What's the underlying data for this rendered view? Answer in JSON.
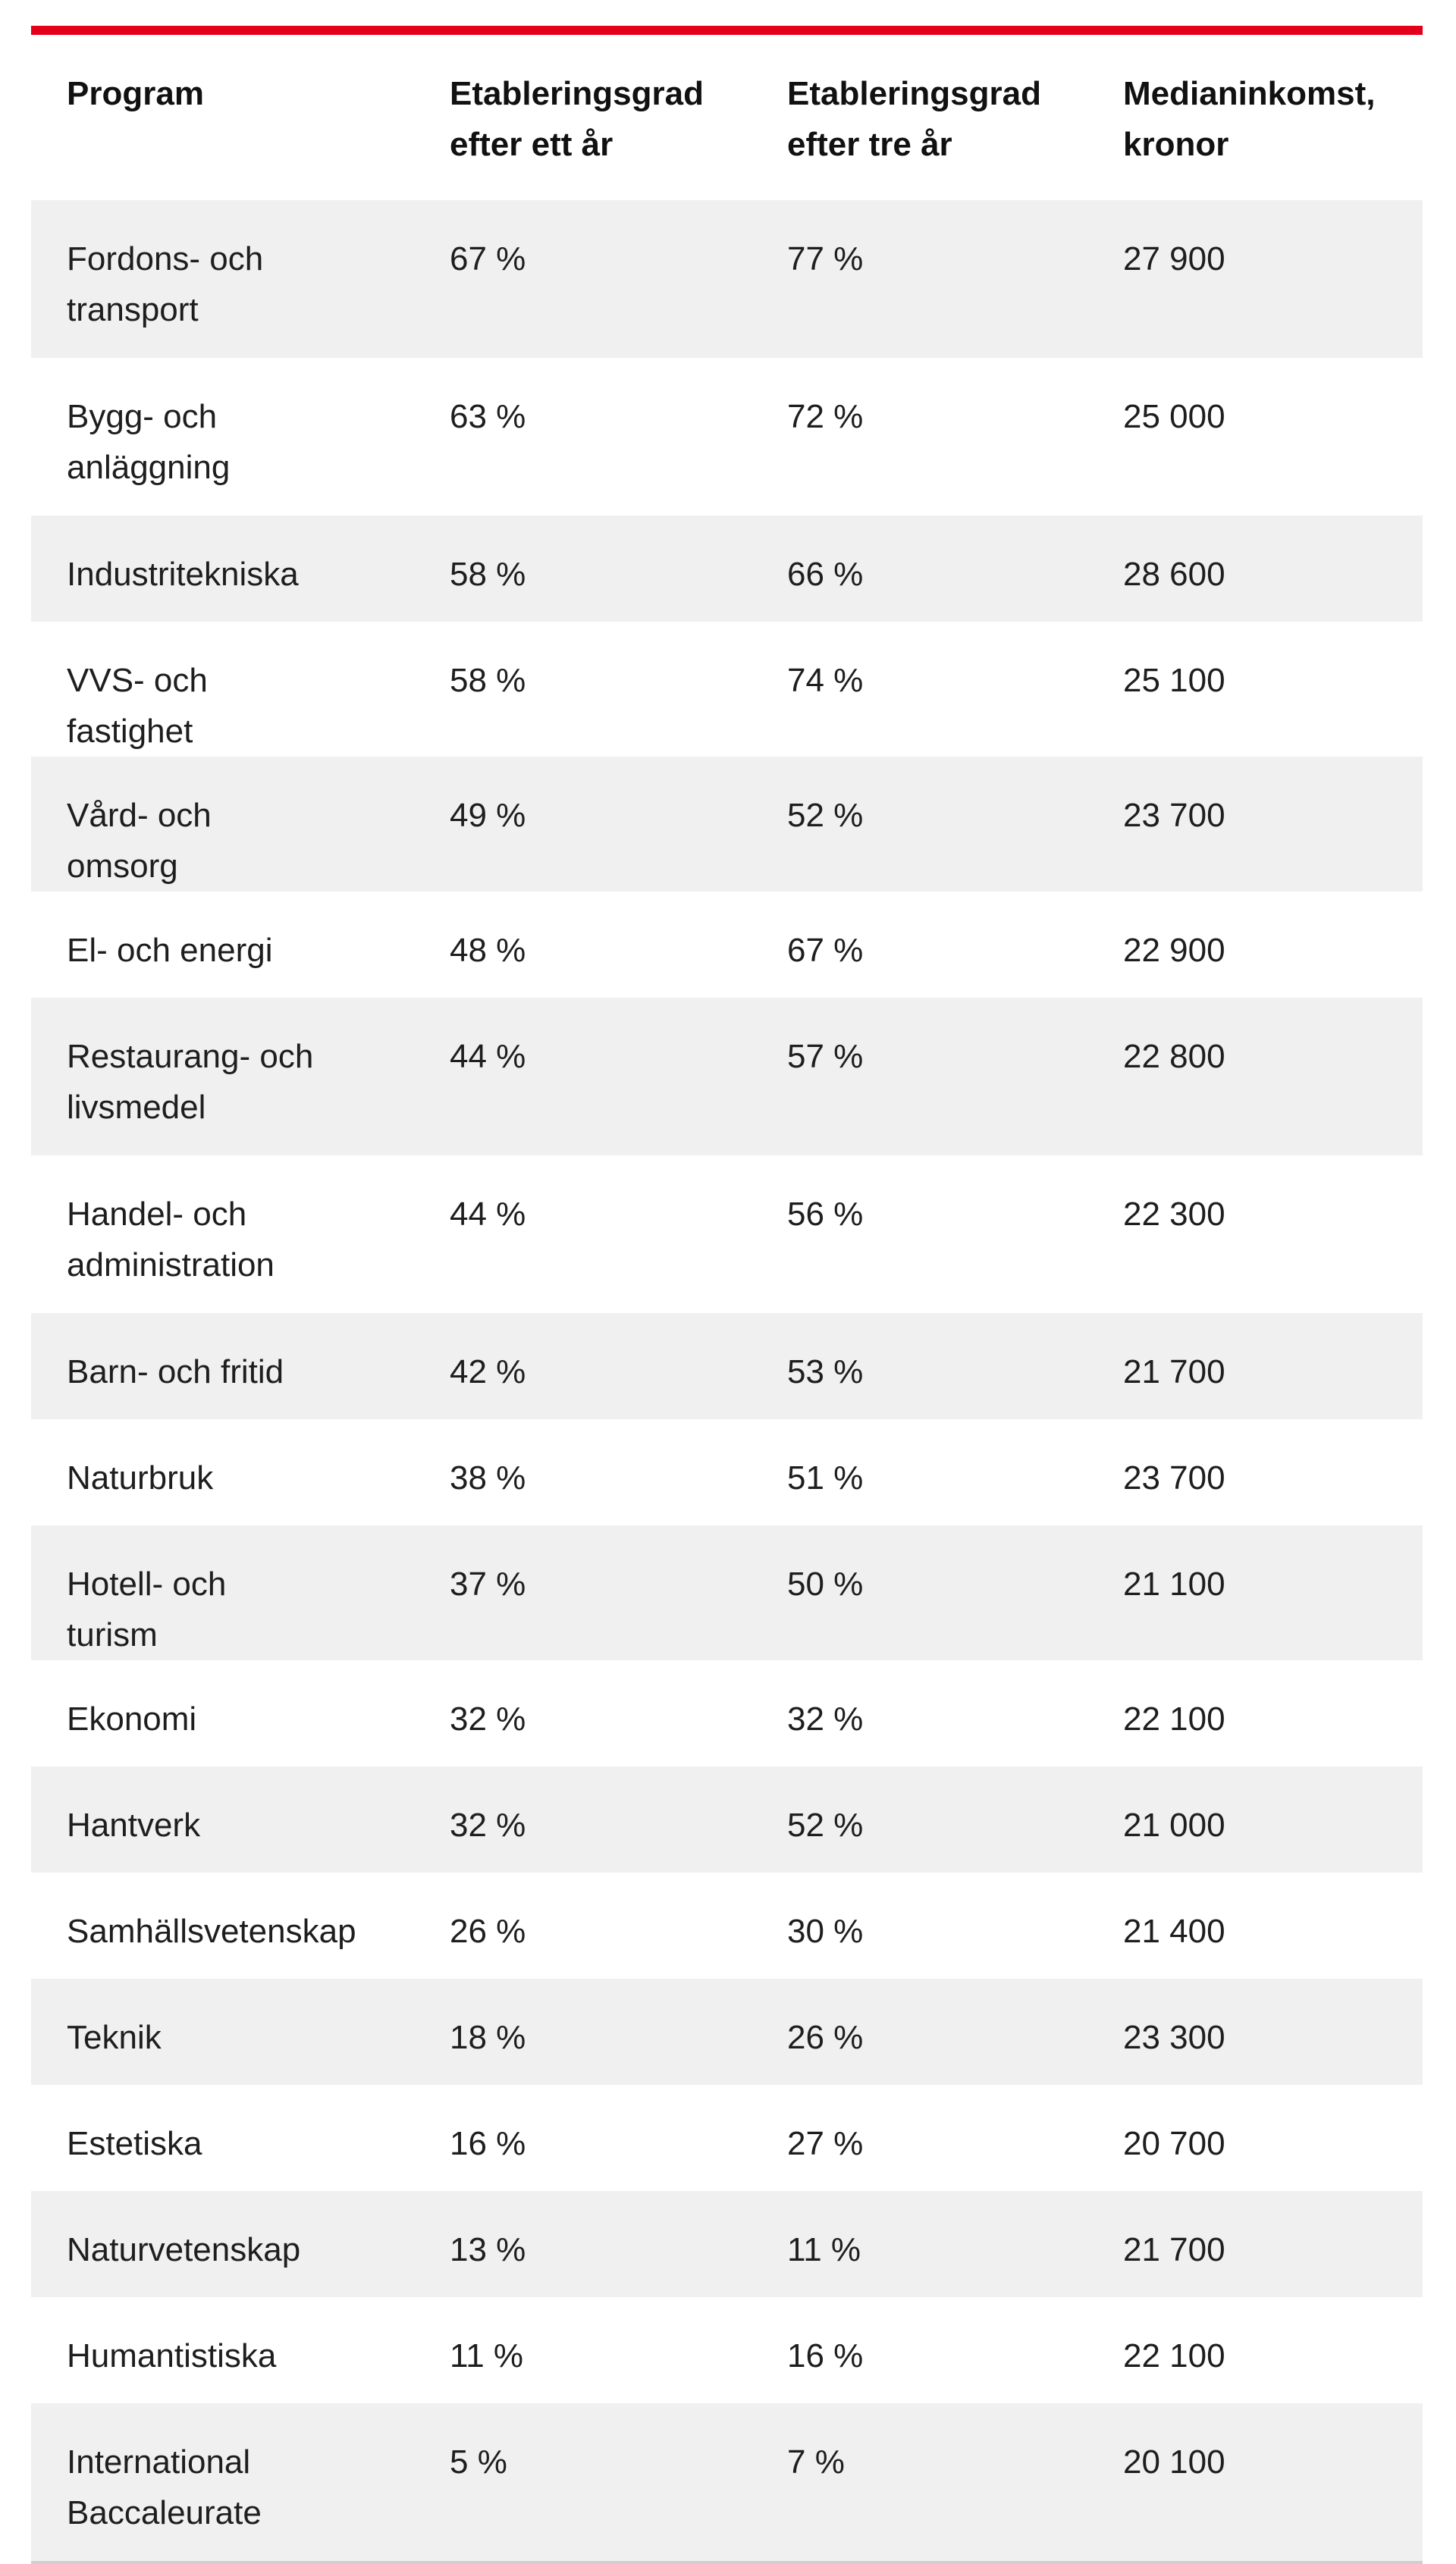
{
  "table": {
    "accent_color": "#e3001b",
    "headers": [
      "Program",
      "Etableringsgrad efter ett år",
      "Etableringsgrad efter tre år",
      "Medianinkomst, kronor"
    ],
    "rows": [
      [
        "Fordons- och transport",
        "67 %",
        "77 %",
        "27 900"
      ],
      [
        "Bygg- och anläggning",
        "63 %",
        "72 %",
        "25 000"
      ],
      [
        "Industritekniska",
        "58 %",
        "66 %",
        "28 600"
      ],
      [
        "VVS- och fastighet",
        "58 %",
        "74 %",
        "25 100"
      ],
      [
        "Vård- och omsorg",
        "49 %",
        "52 %",
        "23 700"
      ],
      [
        "El- och energi",
        "48 %",
        "67 %",
        "22 900"
      ],
      [
        "Restaurang- och livsmedel",
        "44 %",
        "57 %",
        "22 800"
      ],
      [
        "Handel- och administration",
        "44 %",
        "56 %",
        "22 300"
      ],
      [
        "Barn- och fritid",
        "42 %",
        "53 %",
        "21 700"
      ],
      [
        "Naturbruk",
        "38 %",
        "51 %",
        "23 700"
      ],
      [
        "Hotell- och turism",
        "37 %",
        "50 %",
        "21 100"
      ],
      [
        "Ekonomi",
        "32 %",
        "32 %",
        "22 100"
      ],
      [
        "Hantverk",
        "32 %",
        "52 %",
        "21 000"
      ],
      [
        "Samhällsvetenskap",
        "26 %",
        "30 %",
        "21 400"
      ],
      [
        "Teknik",
        "18 %",
        "26 %",
        "23 300"
      ],
      [
        "Estetiska",
        "16 %",
        "27 %",
        "20 700"
      ],
      [
        "Naturvetenskap",
        "13 %",
        "11 %",
        "21 700"
      ],
      [
        "Humantistiska",
        "11 %",
        "16 %",
        "22 100"
      ],
      [
        "International Baccaleurate",
        "5 %",
        "7 %",
        "20 100"
      ]
    ]
  }
}
